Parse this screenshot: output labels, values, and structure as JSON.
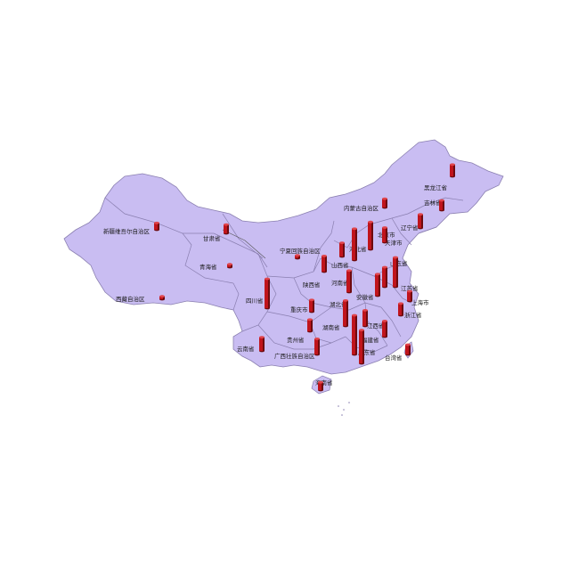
{
  "map": {
    "land_color": "#c9bdf2",
    "border_color": "#8a7fb0",
    "bar_color": "#c0141c",
    "bar_dark": "#6e0a0e",
    "bar_light": "#e0454c"
  },
  "chart_data": {
    "type": "bar",
    "note_on_values": "relative bar heights per province (arbitrary units, no scale shown)",
    "bars": [
      {
        "province": "黑龙江省",
        "value": 12
      },
      {
        "province": "吉林省",
        "value": 10
      },
      {
        "province": "辽宁省",
        "value": 14
      },
      {
        "province": "内蒙古自治区",
        "value": 9
      },
      {
        "province": "新疆维吾尔自治区",
        "value": 7
      },
      {
        "province": "甘肃省",
        "value": 9
      },
      {
        "province": "青海省",
        "value": 3
      },
      {
        "province": "西藏自治区",
        "value": 3
      },
      {
        "province": "宁夏回族自治区",
        "value": 3
      },
      {
        "province": "北京市",
        "value": 28
      },
      {
        "province": "天津市",
        "value": 15
      },
      {
        "province": "河北省",
        "value": 32
      },
      {
        "province": "山西省",
        "value": 14
      },
      {
        "province": "山东省",
        "value": 30
      },
      {
        "province": "陕西省",
        "value": 16
      },
      {
        "province": "河南省",
        "value": 22
      },
      {
        "province": "江苏省",
        "value": 22
      },
      {
        "province": "上海市",
        "value": 10
      },
      {
        "province": "安徽省",
        "value": 20
      },
      {
        "province": "湖北省",
        "value": 26
      },
      {
        "province": "浙江省",
        "value": 12
      },
      {
        "province": "四川省",
        "value": 30
      },
      {
        "province": "重庆市",
        "value": 12
      },
      {
        "province": "湖南省",
        "value": 40
      },
      {
        "province": "江西省",
        "value": 16
      },
      {
        "province": "贵州省",
        "value": 12
      },
      {
        "province": "福建省",
        "value": 16
      },
      {
        "province": "云南省",
        "value": 14
      },
      {
        "province": "广西壮族自治区",
        "value": 16
      },
      {
        "province": "广东省",
        "value": 34
      },
      {
        "province": "台湾省",
        "value": 10
      },
      {
        "province": "海南省",
        "value": 8
      }
    ]
  },
  "labels": {
    "heilongjiang": "黑龙江省",
    "jilin": "吉林省",
    "liaoning": "辽宁省",
    "neimenggu": "内蒙古自治区",
    "xinjiang": "新疆维吾尔自治区",
    "gansu": "甘肃省",
    "qinghai": "青海省",
    "xizang": "西藏自治区",
    "ningxia": "宁夏回族自治区",
    "beijing": "北京市",
    "tianjin": "天津市",
    "hebei": "河北省",
    "shanxi": "山西省",
    "shandong": "山东省",
    "shaanxi": "陕西省",
    "henan": "河南省",
    "jiangsu": "江苏省",
    "shanghai": "上海市",
    "anhui": "安徽省",
    "hubei": "湖北省",
    "zhejiang": "浙江省",
    "sichuan": "四川省",
    "chongqing": "重庆市",
    "hunan": "湖南省",
    "jiangxi": "江西省",
    "guizhou": "贵州省",
    "fujian": "福建省",
    "yunnan": "云南省",
    "guangxi": "广西壮族自治区",
    "guangdong": "广东省",
    "taiwan": "台湾省",
    "hainan": "海南省"
  }
}
